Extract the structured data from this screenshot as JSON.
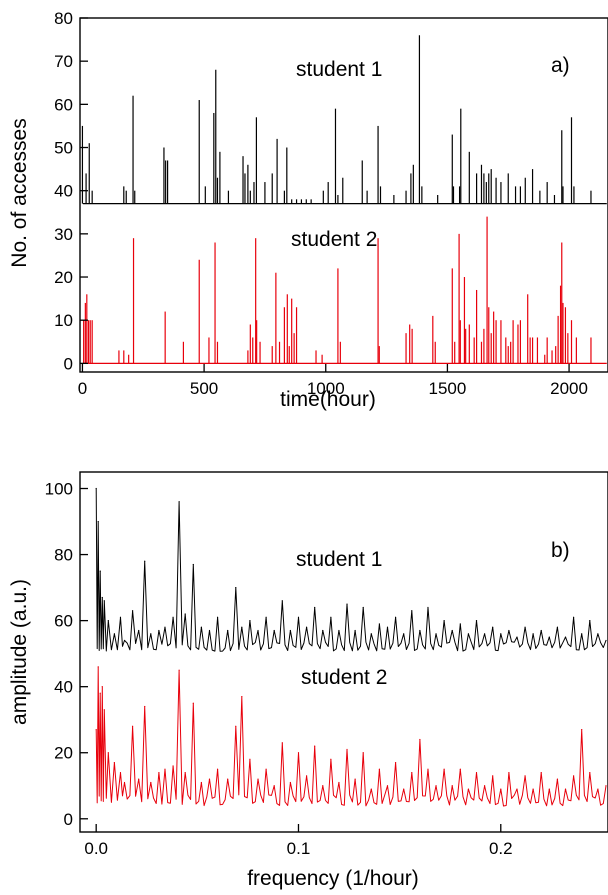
{
  "chart_data": [
    {
      "type": "line",
      "panel_label": "a)",
      "xlabel": "time(hour)",
      "ylabel": "No. of accesses",
      "xlim": [
        -10,
        2160
      ],
      "ylim": [
        -2,
        80
      ],
      "xticks": [
        0,
        500,
        1000,
        1500,
        2000
      ],
      "yticks": [
        0,
        10,
        20,
        30,
        40,
        50,
        60,
        70,
        80
      ],
      "grid": false,
      "annotations": [
        "student 1",
        "student 2"
      ],
      "series": [
        {
          "color": "#000000",
          "baseline": 37,
          "x": [
            0,
            15,
            28,
            40,
            170,
            180,
            208,
            215,
            335,
            342,
            350,
            480,
            505,
            540,
            548,
            555,
            565,
            600,
            660,
            668,
            680,
            690,
            705,
            715,
            750,
            780,
            800,
            830,
            840,
            860,
            880,
            900,
            920,
            940,
            990,
            1010,
            1040,
            1050,
            1070,
            1150,
            1170,
            1215,
            1225,
            1280,
            1330,
            1350,
            1360,
            1385,
            1395,
            1460,
            1520,
            1525,
            1550,
            1555,
            1590,
            1620,
            1640,
            1650,
            1660,
            1670,
            1680,
            1700,
            1720,
            1750,
            1780,
            1800,
            1820,
            1850,
            1880,
            1910,
            1940,
            1970,
            1975,
            2010,
            2020,
            2090
          ],
          "y": [
            55,
            44,
            51,
            40,
            41,
            40,
            62,
            40,
            50,
            47,
            47,
            61,
            41,
            58,
            68,
            43,
            49,
            40,
            48,
            44,
            46,
            40,
            42,
            57,
            42,
            44,
            52,
            40,
            50,
            38,
            38,
            38,
            38,
            38,
            40,
            42,
            59,
            39,
            43,
            47,
            40,
            55,
            41,
            39,
            40,
            44,
            46,
            76,
            41,
            39,
            53,
            41,
            41,
            59,
            49,
            44,
            46,
            44,
            42,
            44,
            45,
            43,
            42,
            44,
            41,
            41,
            43,
            45,
            40,
            42,
            39,
            54,
            41,
            57,
            41,
            40
          ]
        },
        {
          "color": "#e8000b",
          "baseline": 0,
          "x": [
            5,
            12,
            18,
            25,
            32,
            40,
            150,
            170,
            190,
            210,
            340,
            415,
            480,
            520,
            545,
            555,
            680,
            690,
            700,
            712,
            716,
            730,
            780,
            795,
            810,
            830,
            842,
            850,
            860,
            870,
            880,
            960,
            985,
            1050,
            1060,
            1215,
            1220,
            1330,
            1345,
            1355,
            1440,
            1450,
            1520,
            1530,
            1548,
            1553,
            1570,
            1575,
            1590,
            1610,
            1620,
            1640,
            1650,
            1663,
            1670,
            1680,
            1690,
            1700,
            1720,
            1740,
            1750,
            1760,
            1770,
            1790,
            1800,
            1830,
            1840,
            1850,
            1870,
            1900,
            1910,
            1930,
            1945,
            1955,
            1965,
            1970,
            1975,
            1985,
            1995,
            2010,
            2030,
            2090
          ],
          "y": [
            10,
            14,
            16,
            10,
            10,
            10,
            3,
            3,
            2,
            29,
            12,
            5,
            24,
            6,
            28,
            5,
            3,
            9,
            6,
            29,
            10,
            5,
            4,
            21,
            5,
            13,
            16,
            4,
            15,
            7,
            13,
            3,
            2,
            22,
            5,
            29,
            4,
            7,
            9,
            8,
            11,
            5,
            22,
            5,
            30,
            10,
            20,
            8,
            9,
            6,
            17,
            5,
            8,
            34,
            13,
            7,
            12,
            10,
            10,
            6,
            4,
            5,
            10,
            9,
            10,
            16,
            6,
            6,
            6,
            2,
            6,
            3,
            4,
            11,
            18,
            28,
            14,
            13,
            7,
            10,
            6,
            6
          ]
        }
      ]
    },
    {
      "type": "line",
      "panel_label": "b)",
      "xlabel": "frequency (1/hour)",
      "ylabel": "amplitude (a.u.)",
      "xlim": [
        -0.008,
        0.253
      ],
      "ylim": [
        -4,
        105
      ],
      "xticks": [
        0.0,
        0.1,
        0.2
      ],
      "xtick_labels": [
        "0.0",
        "0.1",
        "0.2"
      ],
      "yticks": [
        0,
        20,
        40,
        60,
        80,
        100
      ],
      "grid": false,
      "annotations": [
        "student 1",
        "student 2"
      ],
      "series": [
        {
          "color": "#000000",
          "baseline": 50,
          "x": [
            0.0,
            0.001,
            0.002,
            0.003,
            0.004,
            0.006,
            0.009,
            0.012,
            0.014,
            0.018,
            0.021,
            0.024,
            0.027,
            0.031,
            0.034,
            0.038,
            0.041,
            0.044,
            0.048,
            0.052,
            0.056,
            0.06,
            0.065,
            0.069,
            0.072,
            0.076,
            0.08,
            0.084,
            0.088,
            0.092,
            0.096,
            0.1,
            0.104,
            0.108,
            0.112,
            0.116,
            0.12,
            0.124,
            0.128,
            0.132,
            0.136,
            0.14,
            0.144,
            0.148,
            0.152,
            0.156,
            0.16,
            0.164,
            0.168,
            0.172,
            0.176,
            0.18,
            0.184,
            0.188,
            0.192,
            0.196,
            0.2,
            0.204,
            0.208,
            0.212,
            0.216,
            0.22,
            0.224,
            0.228,
            0.232,
            0.236,
            0.24,
            0.244,
            0.248,
            0.252
          ],
          "y": [
            100,
            90,
            75,
            67,
            66,
            60,
            56,
            61,
            54,
            63,
            57,
            78,
            56,
            57,
            58,
            61,
            96,
            62,
            77,
            58,
            57,
            61,
            57,
            70,
            58,
            60,
            57,
            61,
            57,
            66,
            57,
            61,
            58,
            64,
            57,
            61,
            57,
            65,
            57,
            64,
            56,
            59,
            58,
            61,
            56,
            63,
            57,
            64,
            56,
            60,
            57,
            59,
            56,
            60,
            56,
            58,
            56,
            57,
            55,
            58,
            56,
            57,
            55,
            58,
            55,
            61,
            56,
            60,
            56,
            54
          ]
        },
        {
          "color": "#e8000b",
          "baseline": 3,
          "x": [
            0.0,
            0.001,
            0.002,
            0.003,
            0.004,
            0.006,
            0.009,
            0.012,
            0.014,
            0.018,
            0.021,
            0.024,
            0.027,
            0.031,
            0.034,
            0.038,
            0.041,
            0.044,
            0.048,
            0.052,
            0.056,
            0.06,
            0.065,
            0.069,
            0.072,
            0.076,
            0.08,
            0.084,
            0.088,
            0.092,
            0.096,
            0.1,
            0.104,
            0.108,
            0.112,
            0.116,
            0.12,
            0.124,
            0.128,
            0.132,
            0.136,
            0.14,
            0.144,
            0.148,
            0.152,
            0.156,
            0.16,
            0.164,
            0.168,
            0.172,
            0.176,
            0.18,
            0.184,
            0.188,
            0.192,
            0.196,
            0.2,
            0.204,
            0.208,
            0.212,
            0.216,
            0.22,
            0.224,
            0.228,
            0.232,
            0.236,
            0.24,
            0.244,
            0.248,
            0.252
          ],
          "y": [
            27,
            46,
            38,
            40,
            33,
            20,
            17,
            14,
            11,
            28,
            12,
            34,
            11,
            14,
            15,
            16,
            45,
            14,
            35,
            11,
            12,
            15,
            12,
            28,
            37,
            18,
            12,
            15,
            10,
            23,
            11,
            20,
            13,
            22,
            10,
            18,
            11,
            21,
            12,
            20,
            9,
            15,
            10,
            17,
            9,
            14,
            24,
            15,
            10,
            15,
            10,
            15,
            9,
            14,
            10,
            13,
            9,
            14,
            9,
            13,
            9,
            14,
            9,
            12,
            9,
            13,
            27,
            14,
            9,
            10
          ]
        }
      ]
    }
  ]
}
